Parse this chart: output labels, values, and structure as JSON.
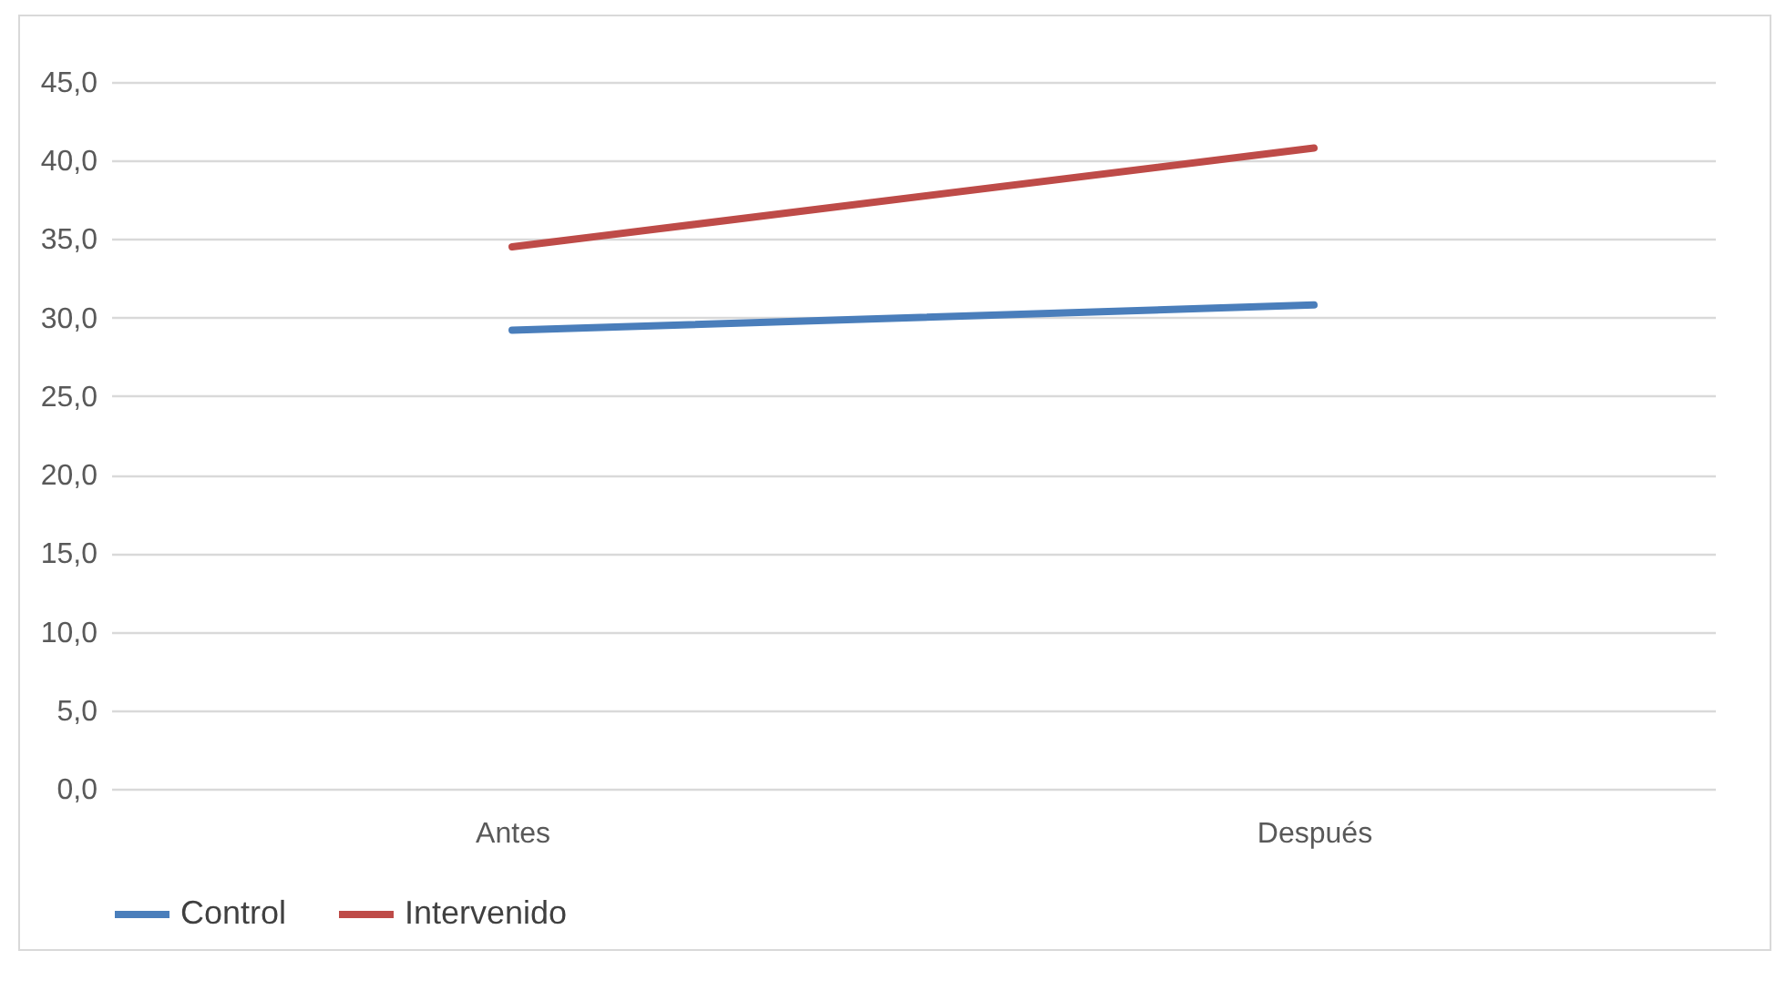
{
  "chart_data": {
    "type": "line",
    "categories": [
      "Antes",
      "Después"
    ],
    "series": [
      {
        "name": "Control",
        "color": "#4a7ebb",
        "values": [
          29.2,
          30.8
        ]
      },
      {
        "name": "Intervenido",
        "color": "#be4b48",
        "values": [
          34.5,
          40.8
        ]
      }
    ],
    "ylim": [
      0,
      45
    ],
    "yticks": [
      {
        "value": 0,
        "label": "0,0"
      },
      {
        "value": 5,
        "label": "5,0"
      },
      {
        "value": 10,
        "label": "10,0"
      },
      {
        "value": 15,
        "label": "15,0"
      },
      {
        "value": 20,
        "label": "20,0"
      },
      {
        "value": 25,
        "label": "25,0"
      },
      {
        "value": 30,
        "label": "30,0"
      },
      {
        "value": 35,
        "label": "35,0"
      },
      {
        "value": 40,
        "label": "40,0"
      },
      {
        "value": 45,
        "label": "45,0"
      }
    ],
    "grid": "y",
    "legend": "bottom",
    "marker": "none",
    "line_style": "solid"
  }
}
